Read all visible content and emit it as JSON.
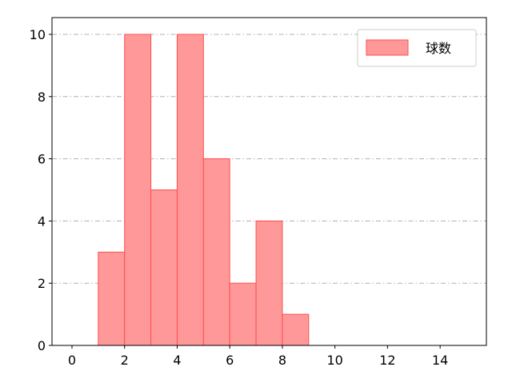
{
  "chart_data": {
    "type": "bar",
    "bin_edges": [
      1,
      2,
      3,
      4,
      5,
      6,
      7,
      8,
      9
    ],
    "values": [
      3,
      10,
      5,
      10,
      6,
      2,
      4,
      1
    ],
    "xlim": [
      -0.76,
      15.76
    ],
    "ylim": [
      0,
      10.54
    ],
    "xticks": [
      0,
      2,
      4,
      6,
      8,
      10,
      12,
      14
    ],
    "yticks": [
      0,
      2,
      4,
      6,
      8,
      10
    ],
    "grid": "y dash-dot",
    "legend": {
      "position": "top-right",
      "entries": [
        "球数"
      ]
    },
    "colors": {
      "bar_fill": "#ff9999",
      "bar_edge": "#ff4d4d",
      "grid": "#b0b0b0"
    }
  }
}
